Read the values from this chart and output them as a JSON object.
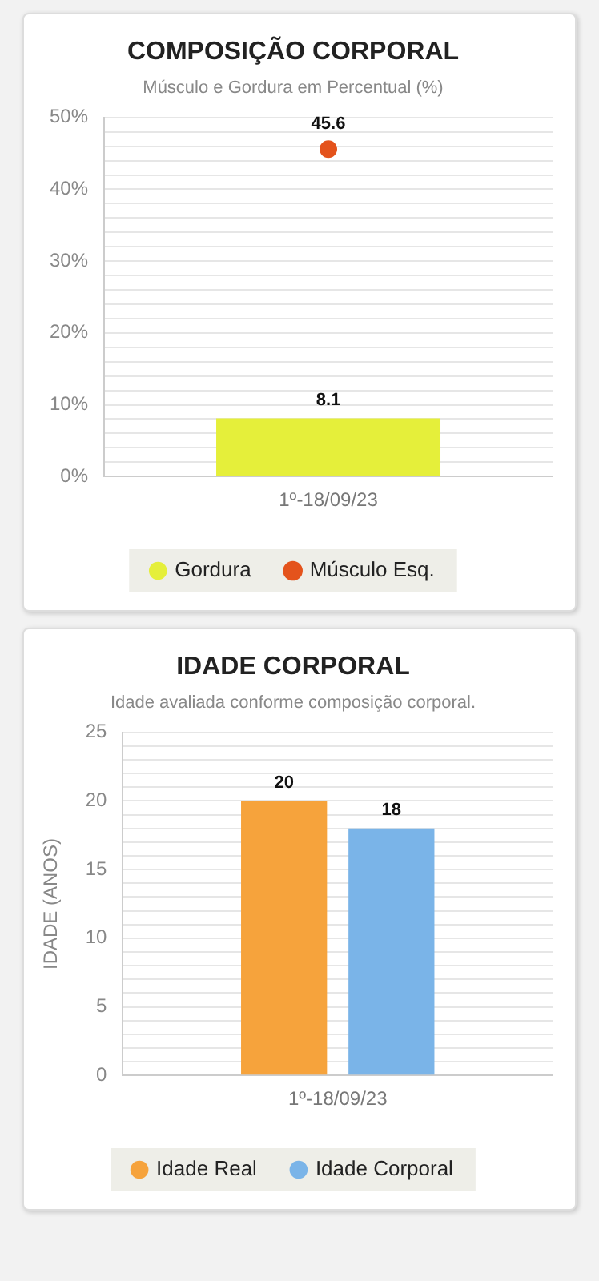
{
  "chart_data": [
    {
      "type": "bar",
      "title": "COMPOSIÇÃO CORPORAL",
      "subtitle": "Músculo e Gordura em Percentual (%)",
      "categories": [
        "1º-18/09/23"
      ],
      "series": [
        {
          "name": "Gordura",
          "color": "#e5ef3a",
          "values": [
            8.1
          ]
        },
        {
          "name": "Músculo Esq.",
          "type": "scatter",
          "color": "#e4531c",
          "x": [
            "1º-18/09/23"
          ],
          "values": [
            45.6
          ]
        }
      ],
      "ylim": [
        0,
        50
      ],
      "yticks": [
        {
          "value": 0,
          "label": "0%"
        },
        {
          "value": 2,
          "label": null
        },
        {
          "value": 4,
          "label": null
        },
        {
          "value": 6,
          "label": null
        },
        {
          "value": 8,
          "label": null
        },
        {
          "value": 10,
          "label": "10%"
        },
        {
          "value": 12,
          "label": null
        },
        {
          "value": 14,
          "label": null
        },
        {
          "value": 16,
          "label": null
        },
        {
          "value": 18,
          "label": null
        },
        {
          "value": 20,
          "label": "20%"
        },
        {
          "value": 22,
          "label": null
        },
        {
          "value": 24,
          "label": null
        },
        {
          "value": 26,
          "label": null
        },
        {
          "value": 28,
          "label": null
        },
        {
          "value": 30,
          "label": "30%"
        },
        {
          "value": 32,
          "label": null
        },
        {
          "value": 34,
          "label": null
        },
        {
          "value": 36,
          "label": null
        },
        {
          "value": 38,
          "label": null
        },
        {
          "value": 40,
          "label": "40%"
        },
        {
          "value": 42,
          "label": null
        },
        {
          "value": 44,
          "label": null
        },
        {
          "value": 46,
          "label": null
        },
        {
          "value": 48,
          "label": null
        },
        {
          "value": 50,
          "label": "50%"
        }
      ],
      "grid": "y",
      "legend": "bottom",
      "marker": "circle",
      "data_labels": true
    },
    {
      "type": "bar",
      "title": "IDADE CORPORAL",
      "subtitle": "Idade avaliada conforme composição corporal.",
      "ylabel": "IDADE (ANOS)",
      "categories": [
        "1º-18/09/23"
      ],
      "series": [
        {
          "name": "Idade Real",
          "color": "#f6a33c",
          "values": [
            20
          ]
        },
        {
          "name": "Idade Corporal",
          "color": "#7ab4e8",
          "values": [
            18
          ]
        }
      ],
      "ylim": [
        0,
        25
      ],
      "yticks": [
        0,
        {
          "value": 1,
          "label": null
        },
        {
          "value": 2,
          "label": null
        },
        {
          "value": 3,
          "label": null
        },
        {
          "value": 4,
          "label": null
        },
        5,
        {
          "value": 6,
          "label": null
        },
        {
          "value": 7,
          "label": null
        },
        {
          "value": 8,
          "label": null
        },
        {
          "value": 9,
          "label": null
        },
        10,
        {
          "value": 11,
          "label": null
        },
        {
          "value": 12,
          "label": null
        },
        {
          "value": 13,
          "label": null
        },
        {
          "value": 14,
          "label": null
        },
        15,
        {
          "value": 16,
          "label": null
        },
        {
          "value": 17,
          "label": null
        },
        {
          "value": 18,
          "label": null
        },
        {
          "value": 19,
          "label": null
        },
        20,
        {
          "value": 21,
          "label": null
        },
        {
          "value": 22,
          "label": null
        },
        {
          "value": 23,
          "label": null
        },
        {
          "value": 24,
          "label": null
        },
        25
      ],
      "grid": "y",
      "legend": "bottom",
      "data_labels": true
    }
  ]
}
